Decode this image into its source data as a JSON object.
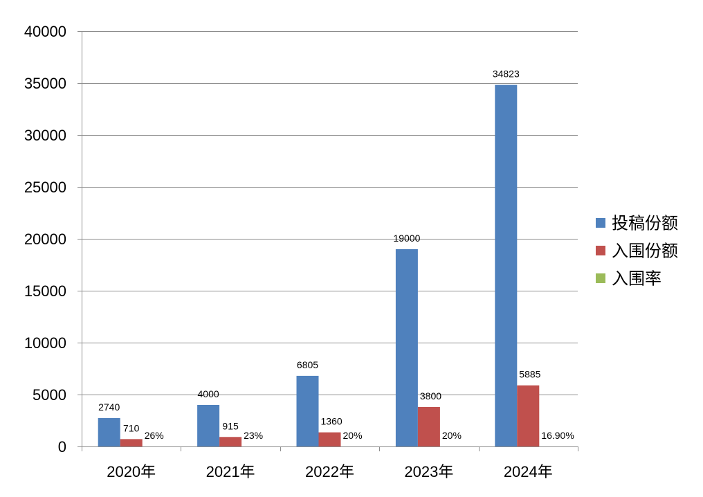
{
  "chart_data": {
    "type": "bar",
    "categories": [
      "2020年",
      "2021年",
      "2022年",
      "2023年",
      "2024年"
    ],
    "series": [
      {
        "name": "投稿份额",
        "color": "#4F81BD",
        "values": [
          2740,
          4000,
          6805,
          19000,
          34823
        ]
      },
      {
        "name": "入围份额",
        "color": "#C0504D",
        "values": [
          710,
          915,
          1360,
          3800,
          5885
        ]
      },
      {
        "name": "入围率",
        "color": "#9BBB59",
        "values": [
          0.26,
          0.23,
          0.2,
          0.2,
          0.169
        ],
        "labels": [
          "26%",
          "23%",
          "20%",
          "20%",
          "16.90%"
        ]
      }
    ],
    "ylim": [
      0,
      40000
    ],
    "yticks": [
      0,
      5000,
      10000,
      15000,
      20000,
      25000,
      30000,
      35000,
      40000
    ],
    "grid": true,
    "legend": "right",
    "colors": {
      "gridline": "#8c8c8c",
      "axis": "#8c8c8c"
    }
  }
}
